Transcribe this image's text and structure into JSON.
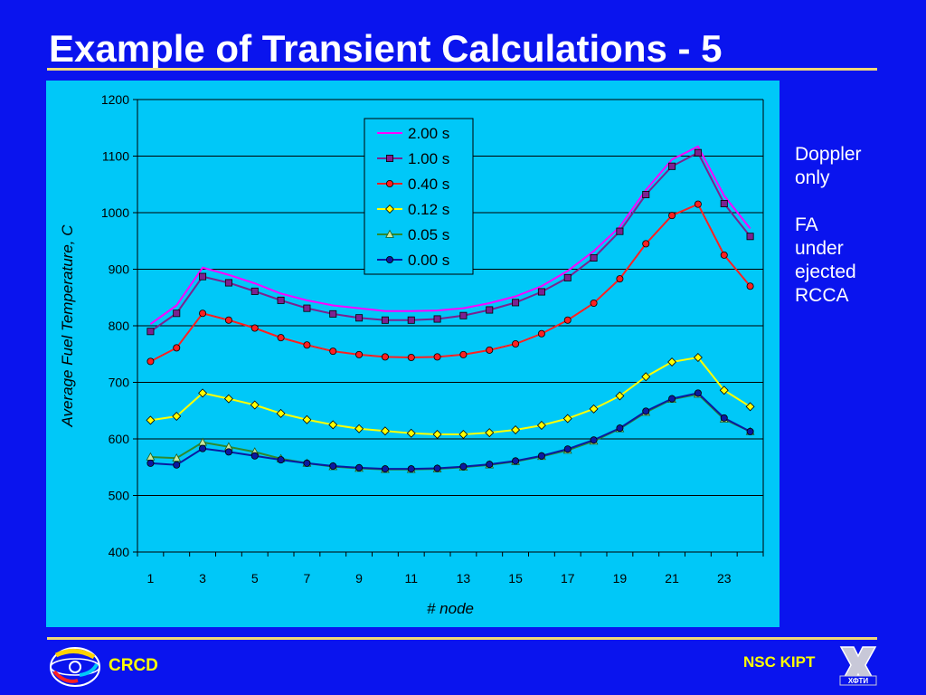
{
  "slide": {
    "title": "Example of Transient Calculations - 5",
    "note": [
      "Doppler",
      "only",
      "",
      "FA",
      "under",
      "ejected",
      "RCCA"
    ],
    "footer_left": "CRCD",
    "footer_right": "NSC KIPT"
  },
  "colors": {
    "background": "#0a14ee",
    "plot_area": "#00c8f8",
    "rule": "#f0d878",
    "footer_text": "#ffff00"
  },
  "chart_data": {
    "type": "line",
    "title": "",
    "xlabel": "# node",
    "ylabel": "Average Fuel Temperature, C",
    "xlim": [
      1,
      24
    ],
    "ylim": [
      400,
      1200
    ],
    "x_ticks": [
      1,
      3,
      5,
      7,
      9,
      11,
      13,
      15,
      17,
      19,
      21,
      23
    ],
    "y_ticks": [
      400,
      500,
      600,
      700,
      800,
      900,
      1000,
      1100,
      1200
    ],
    "grid": "horizontal",
    "legend_position": "top-center",
    "x": [
      1,
      2,
      3,
      4,
      5,
      6,
      7,
      8,
      9,
      10,
      11,
      12,
      13,
      14,
      15,
      16,
      17,
      18,
      19,
      20,
      21,
      22,
      23,
      24
    ],
    "series": [
      {
        "name": "2.00 s",
        "color": "#ff00ff",
        "marker": "none",
        "values": [
          803,
          836,
          903,
          890,
          875,
          857,
          845,
          836,
          831,
          826,
          826,
          827,
          831,
          840,
          852,
          870,
          897,
          932,
          975,
          1040,
          1094,
          1117,
          1030,
          972
        ]
      },
      {
        "name": "1.00 s",
        "color": "#7b2290",
        "marker": "square",
        "values": [
          790,
          822,
          887,
          876,
          861,
          845,
          831,
          821,
          814,
          810,
          810,
          812,
          818,
          828,
          841,
          860,
          885,
          920,
          967,
          1032,
          1082,
          1106,
          1016,
          958
        ]
      },
      {
        "name": "0.40 s",
        "color": "#ff2020",
        "marker": "circle",
        "values": [
          737,
          761,
          822,
          810,
          796,
          779,
          766,
          755,
          749,
          745,
          744,
          745,
          749,
          757,
          768,
          786,
          810,
          840,
          883,
          945,
          995,
          1015,
          925,
          870
        ]
      },
      {
        "name": "0.12 s",
        "color": "#ffff00",
        "marker": "diamond",
        "values": [
          633,
          640,
          681,
          671,
          660,
          645,
          634,
          625,
          618,
          614,
          610,
          608,
          608,
          611,
          616,
          624,
          636,
          653,
          676,
          710,
          736,
          744,
          686,
          657
        ]
      },
      {
        "name": "0.05 s",
        "color": "#2d8a2d",
        "marker": "triangle",
        "values": [
          568,
          566,
          594,
          586,
          577,
          565,
          557,
          551,
          548,
          546,
          546,
          547,
          550,
          554,
          560,
          569,
          580,
          596,
          618,
          647,
          670,
          679,
          635,
          613
        ]
      },
      {
        "name": "0.00 s",
        "color": "#0a1aa0",
        "marker": "circle",
        "values": [
          557,
          554,
          583,
          577,
          570,
          563,
          557,
          552,
          549,
          547,
          547,
          548,
          551,
          555,
          561,
          570,
          582,
          598,
          619,
          649,
          671,
          681,
          637,
          613
        ]
      }
    ]
  }
}
